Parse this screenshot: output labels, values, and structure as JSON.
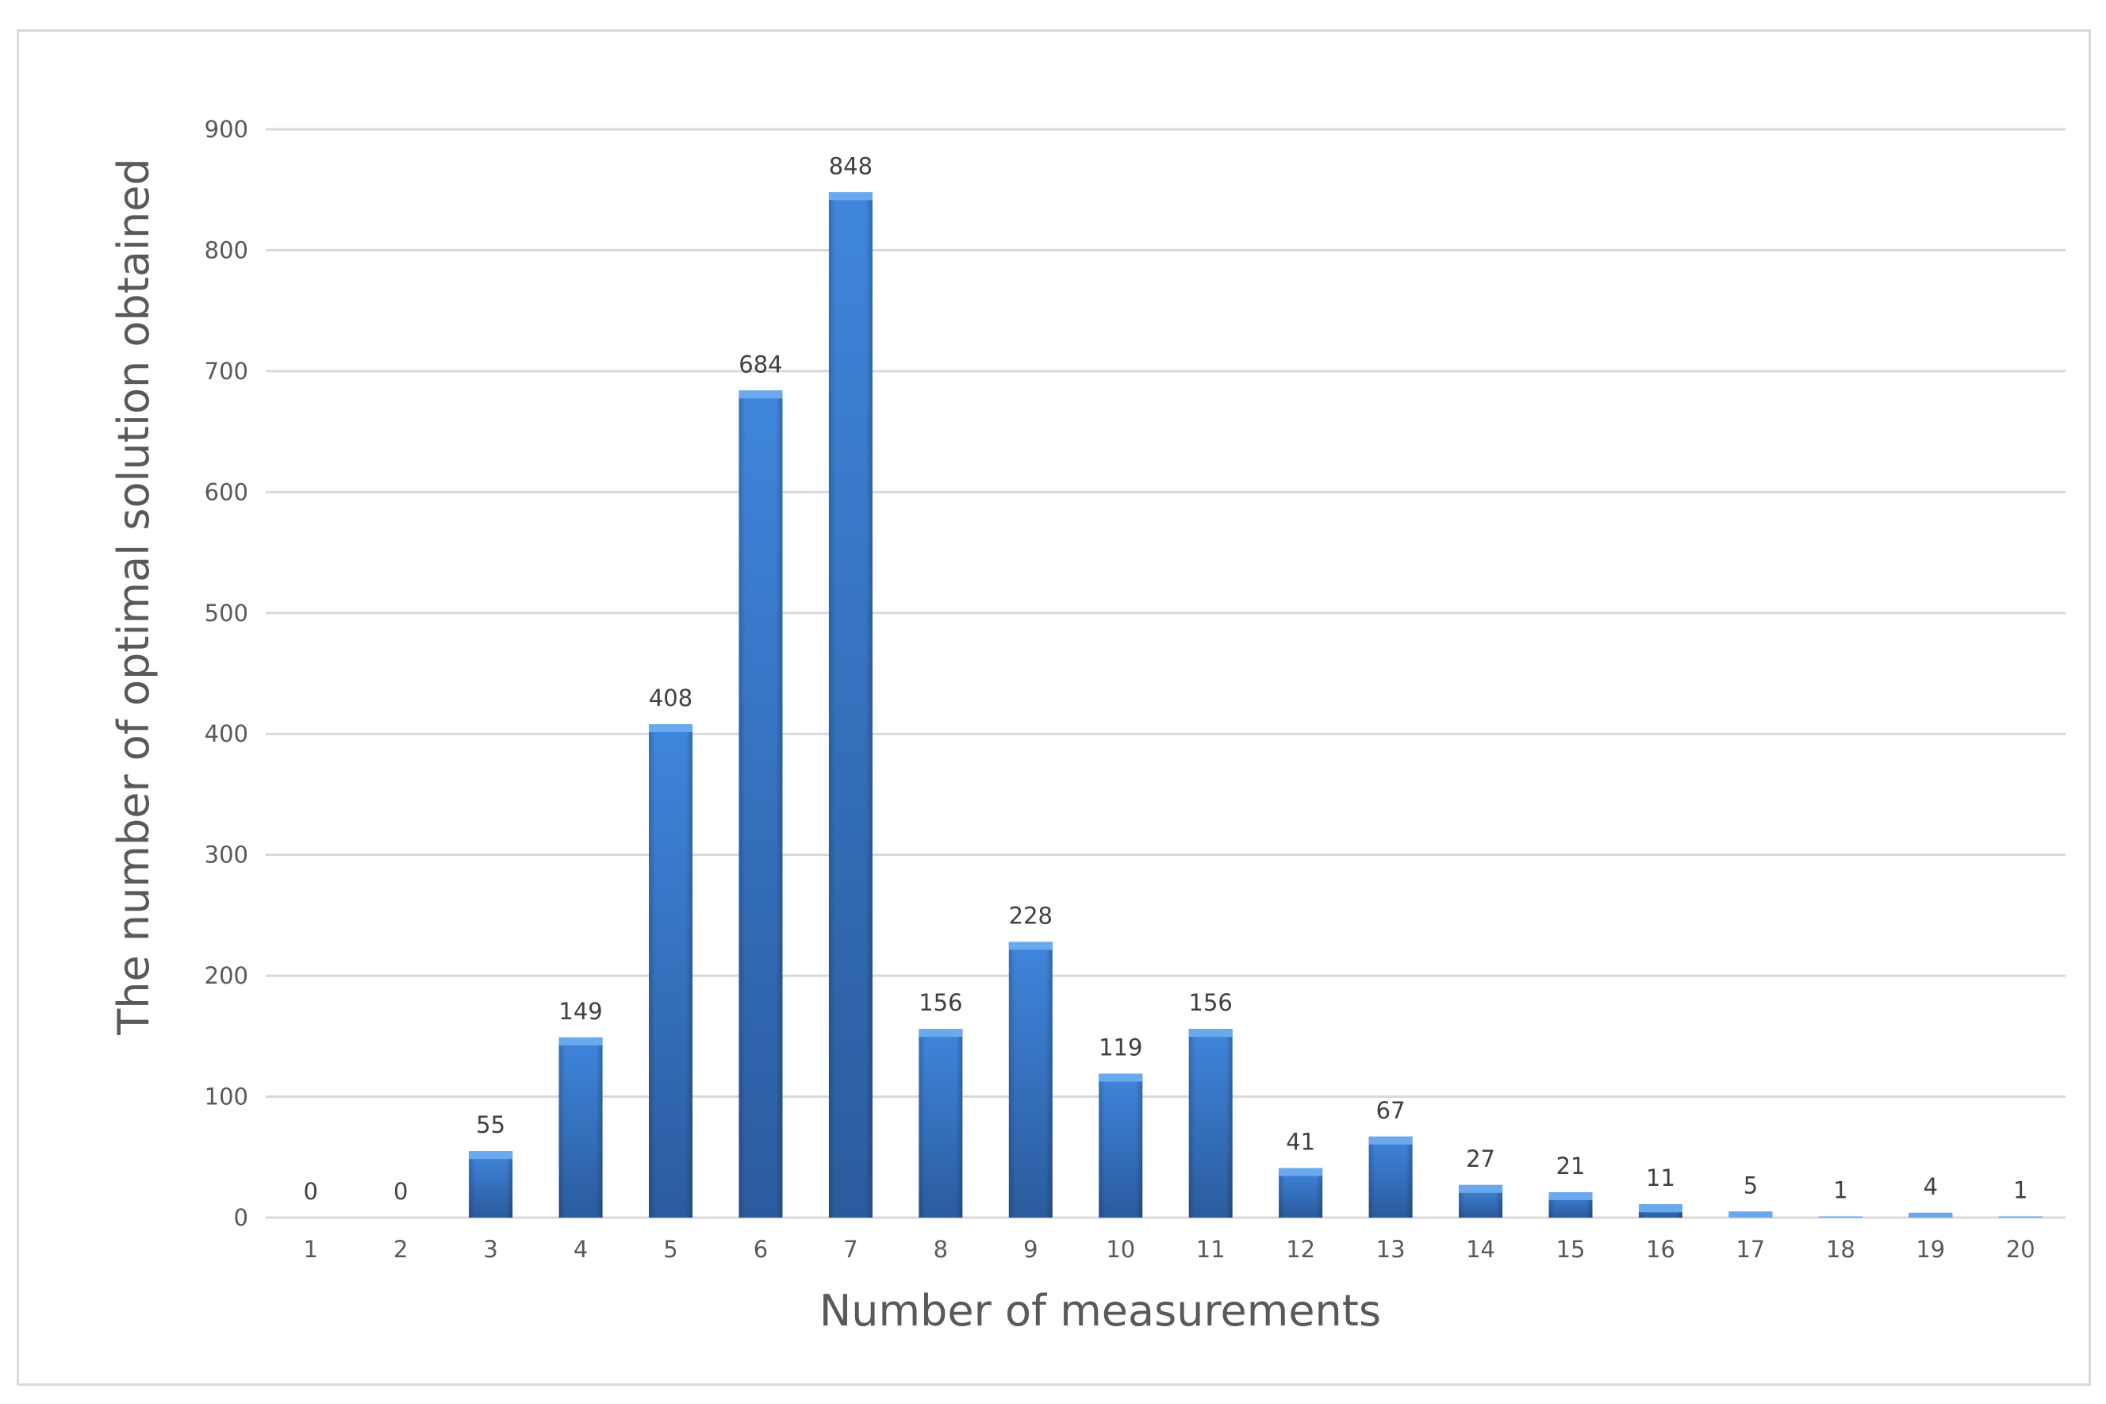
{
  "chart_data": {
    "type": "bar",
    "title": "",
    "xlabel": "Number of measurements",
    "ylabel": "The number of optimal solution obtained",
    "categories": [
      "1",
      "2",
      "3",
      "4",
      "5",
      "6",
      "7",
      "8",
      "9",
      "10",
      "11",
      "12",
      "13",
      "14",
      "15",
      "16",
      "17",
      "18",
      "19",
      "20"
    ],
    "values": [
      0,
      0,
      55,
      149,
      408,
      684,
      848,
      156,
      228,
      119,
      156,
      41,
      67,
      27,
      21,
      11,
      5,
      1,
      4,
      1
    ],
    "ylim": [
      0,
      900
    ],
    "yticks": [
      0,
      100,
      200,
      300,
      400,
      500,
      600,
      700,
      800,
      900
    ],
    "grid": true,
    "legend": "none",
    "data_labels": true,
    "bar_color": "#3a7bd5",
    "bar_color_dark": "#2c5a9c"
  }
}
